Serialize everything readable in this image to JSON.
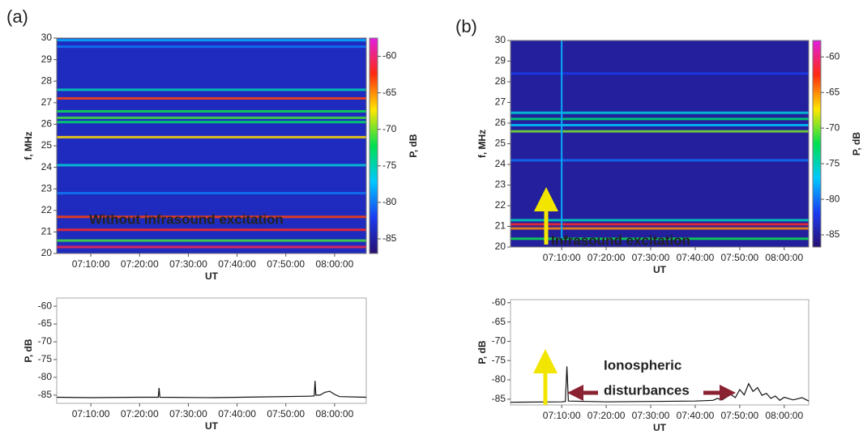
{
  "chart_data": [
    {
      "type": "spectrogram",
      "panel": "(a)",
      "ylabel": "f, MHz",
      "xlabel": "UT",
      "colorbar_label": "P, dB",
      "xlim": [
        "07:03:00",
        "08:06:30"
      ],
      "xticks": [
        "07:10:00",
        "07:20:00",
        "07:30:00",
        "07:40:00",
        "07:50:00",
        "08:00:00"
      ],
      "ylim": [
        20,
        30
      ],
      "yticks": [
        20,
        21,
        22,
        23,
        24,
        25,
        26,
        27,
        28,
        29,
        30
      ],
      "clim": [
        -87,
        -57.5
      ],
      "cticks": [
        -85,
        -80,
        -75,
        -70,
        -65,
        -60
      ],
      "colormap": [
        "#281070",
        "#1a3cf0",
        "#00c8ff",
        "#00e050",
        "#ffe600",
        "#ff2a10",
        "#e020e0"
      ],
      "background": -84,
      "bands": [
        {
          "f": 29.9,
          "power": -78
        },
        {
          "f": 29.6,
          "power": -80
        },
        {
          "f": 27.6,
          "power": -75
        },
        {
          "f": 27.2,
          "power": -63
        },
        {
          "f": 26.6,
          "power": -72
        },
        {
          "f": 26.3,
          "power": -71
        },
        {
          "f": 26.1,
          "power": -73
        },
        {
          "f": 25.4,
          "power": -67
        },
        {
          "f": 24.1,
          "power": -76
        },
        {
          "f": 22.8,
          "power": -80
        },
        {
          "f": 21.7,
          "power": -63
        },
        {
          "f": 21.1,
          "power": -62
        },
        {
          "f": 20.6,
          "power": -71
        },
        {
          "f": 20.3,
          "power": -61
        }
      ],
      "annotation": [
        "Without infrasound excitation"
      ],
      "annotation_color": "#f2e600"
    },
    {
      "type": "line",
      "ylabel": "P, dB",
      "xlabel": "UT",
      "color": "#111111",
      "xlim": [
        "07:03:00",
        "08:06:30"
      ],
      "xticks": [
        "07:10:00",
        "07:20:00",
        "07:30:00",
        "07:40:00",
        "07:50:00",
        "08:00:00"
      ],
      "ylim": [
        -87.3,
        -57.7
      ],
      "yticks": [
        -85,
        -80,
        -75,
        -70,
        -65,
        -60
      ],
      "x": [
        "07:03:00",
        "07:10:00",
        "07:20:00",
        "07:23:50",
        "07:24:00",
        "07:24:10",
        "07:35:00",
        "07:45:00",
        "07:55:00",
        "07:55:50",
        "07:56:00",
        "07:56:10",
        "07:57:00",
        "07:58:00",
        "07:59:00",
        "08:00:00",
        "08:01:00",
        "08:06:30"
      ],
      "values": [
        -85.6,
        -85.7,
        -85.6,
        -85.6,
        -83.0,
        -85.6,
        -85.7,
        -85.5,
        -85.3,
        -85.2,
        -81.0,
        -85.0,
        -85.0,
        -84.2,
        -83.9,
        -84.8,
        -85.4,
        -85.6
      ]
    },
    {
      "type": "spectrogram",
      "panel": "(b)",
      "ylabel": "f, MHz",
      "xlabel": "UT",
      "colorbar_label": "P, dB",
      "xlim": [
        "06:58:30",
        "08:05:30"
      ],
      "xticks": [
        "07:10:00",
        "07:20:00",
        "07:30:00",
        "07:40:00",
        "07:50:00",
        "08:00:00"
      ],
      "ylim": [
        20,
        30
      ],
      "yticks": [
        20,
        21,
        22,
        23,
        24,
        25,
        26,
        27,
        28,
        29,
        30
      ],
      "clim": [
        -86.7,
        -57.7
      ],
      "cticks": [
        -85,
        -80,
        -75,
        -70,
        -65,
        -60
      ],
      "colormap": [
        "#281070",
        "#1a3cf0",
        "#00c8ff",
        "#00e050",
        "#ffe600",
        "#ff2a10",
        "#e020e0"
      ],
      "background": -85,
      "bands": [
        {
          "f": 28.4,
          "power": -82
        },
        {
          "f": 26.5,
          "power": -76
        },
        {
          "f": 26.2,
          "power": -73
        },
        {
          "f": 25.9,
          "power": -77
        },
        {
          "f": 25.6,
          "power": -70
        },
        {
          "f": 24.2,
          "power": -80
        },
        {
          "f": 21.3,
          "power": -75
        },
        {
          "f": 21.1,
          "power": -62
        },
        {
          "f": 20.9,
          "power": -65
        },
        {
          "f": 20.4,
          "power": -72
        }
      ],
      "vertical_lines": [
        {
          "time": "07:10:00",
          "power": -78
        }
      ],
      "annotation": [
        "Infrasound excitation"
      ],
      "annotation_color": "#f2e600"
    },
    {
      "type": "line",
      "ylabel": "P, dB",
      "xlabel": "UT",
      "color": "#111111",
      "xlim": [
        "06:58:30",
        "08:05:30"
      ],
      "xticks": [
        "07:10:00",
        "07:20:00",
        "07:30:00",
        "07:40:00",
        "07:50:00",
        "08:00:00"
      ],
      "ylim": [
        -86.5,
        -59.2
      ],
      "yticks": [
        -85,
        -80,
        -75,
        -70,
        -65,
        -60
      ],
      "x": [
        "06:58:30",
        "07:10:00",
        "07:10:50",
        "07:11:10",
        "07:11:30",
        "07:20:00",
        "07:30:00",
        "07:40:00",
        "07:44:00",
        "07:45:00",
        "07:46:00",
        "07:47:00",
        "07:48:00",
        "07:49:00",
        "07:50:00",
        "07:51:00",
        "07:52:00",
        "07:53:00",
        "07:54:00",
        "07:55:00",
        "07:56:00",
        "07:57:00",
        "07:58:00",
        "07:59:00",
        "08:00:00",
        "08:02:00",
        "08:04:00",
        "08:05:30"
      ],
      "values": [
        -85.8,
        -85.7,
        -85.6,
        -76.5,
        -85.5,
        -85.7,
        -85.6,
        -85.5,
        -85.3,
        -84.8,
        -85.2,
        -84.5,
        -83.8,
        -84.6,
        -82.5,
        -83.9,
        -81.0,
        -83.0,
        -82.0,
        -84.0,
        -83.5,
        -84.8,
        -84.2,
        -85.3,
        -84.5,
        -85.2,
        -84.6,
        -85.5
      ],
      "annotation": [
        "Ionospheric",
        "disturbances"
      ],
      "annotation_color": "#8b2232"
    }
  ]
}
